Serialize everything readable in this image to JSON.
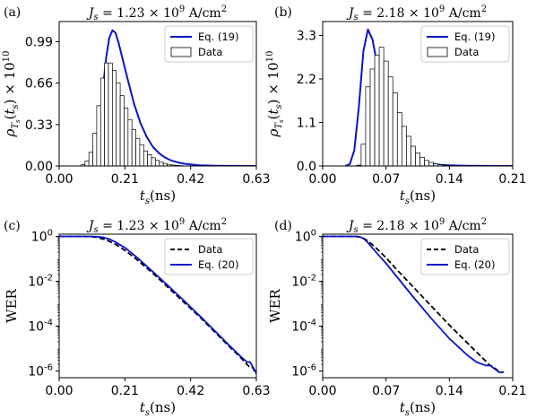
{
  "chart_data": [
    {
      "panel": "(a)",
      "type": "histogram+line",
      "title": "J_s = 1.23 × 10^9 A/cm^2",
      "title_parts": {
        "lhs": "J",
        "sub": "s",
        "mid": " = 1.23 × 10",
        "exp": "9",
        "unit": " A/cm",
        "unit_exp": "2"
      },
      "xlabel": "t_s(ns)",
      "ylabel": "ρ_{T_s}(t_s) × 10^{10}",
      "xlim": [
        0,
        0.63
      ],
      "ylim": [
        0,
        1.15
      ],
      "xticks": [
        0,
        0.21,
        0.42,
        0.63
      ],
      "xtick_labels": [
        "0.00",
        "0.21",
        "0.42",
        "0.63"
      ],
      "yticks": [
        0,
        0.33,
        0.66,
        0.99
      ],
      "ytick_labels": [
        "0.00",
        "0.33",
        "0.66",
        "0.99"
      ],
      "legend_position": "upper-right",
      "colors": {
        "model": "#0a14c8",
        "bars": "#ffffff",
        "bar_edge": "#000000"
      },
      "series": [
        {
          "name": "Eq. (19)",
          "kind": "line",
          "x": [
            0.07,
            0.08,
            0.09,
            0.1,
            0.11,
            0.12,
            0.13,
            0.14,
            0.15,
            0.16,
            0.17,
            0.18,
            0.19,
            0.2,
            0.22,
            0.24,
            0.26,
            0.28,
            0.3,
            0.32,
            0.34,
            0.36,
            0.38,
            0.4,
            0.42,
            0.45,
            0.5,
            0.55,
            0.63
          ],
          "y": [
            0.0,
            0.0,
            0.01,
            0.03,
            0.08,
            0.18,
            0.38,
            0.62,
            0.86,
            1.02,
            1.08,
            1.06,
            0.98,
            0.88,
            0.68,
            0.49,
            0.34,
            0.23,
            0.15,
            0.1,
            0.065,
            0.042,
            0.028,
            0.018,
            0.012,
            0.006,
            0.002,
            0.001,
            0.0
          ]
        },
        {
          "name": "Data",
          "kind": "bars",
          "bin_start": 0.07,
          "bin_width": 0.0125,
          "values": [
            0.01,
            0.04,
            0.11,
            0.26,
            0.48,
            0.7,
            0.82,
            0.82,
            0.76,
            0.66,
            0.56,
            0.46,
            0.37,
            0.29,
            0.22,
            0.17,
            0.12,
            0.09,
            0.065,
            0.045,
            0.03,
            0.02,
            0.013,
            0.008,
            0.005,
            0.003
          ]
        }
      ]
    },
    {
      "panel": "(b)",
      "type": "histogram+line",
      "title": "J_s = 2.18 × 10^9 A/cm^2",
      "title_parts": {
        "lhs": "J",
        "sub": "s",
        "mid": " = 2.18 × 10",
        "exp": "9",
        "unit": " A/cm",
        "unit_exp": "2"
      },
      "xlabel": "t_s(ns)",
      "ylabel": "ρ_{T_s}(t_s) × 10^{10}",
      "xlim": [
        0,
        0.21
      ],
      "ylim": [
        0,
        3.65
      ],
      "xticks": [
        0,
        0.07,
        0.14,
        0.21
      ],
      "xtick_labels": [
        "0.00",
        "0.07",
        "0.14",
        "0.21"
      ],
      "yticks": [
        0,
        1.1,
        2.2,
        3.3
      ],
      "ytick_labels": [
        "0.0",
        "1.1",
        "2.2",
        "3.3"
      ],
      "legend_position": "upper-right",
      "colors": {
        "model": "#0a14c8",
        "bars": "#ffffff",
        "bar_edge": "#000000"
      },
      "series": [
        {
          "name": "Eq. (19)",
          "kind": "line",
          "x": [
            0.025,
            0.03,
            0.035,
            0.04,
            0.045,
            0.05,
            0.055,
            0.06,
            0.065,
            0.07,
            0.075,
            0.08,
            0.09,
            0.1,
            0.11,
            0.12,
            0.13,
            0.14,
            0.16,
            0.18,
            0.21
          ],
          "y": [
            0.0,
            0.05,
            0.4,
            1.5,
            2.9,
            3.45,
            3.2,
            2.6,
            2.0,
            1.5,
            1.1,
            0.8,
            0.42,
            0.22,
            0.11,
            0.06,
            0.03,
            0.015,
            0.005,
            0.002,
            0.0
          ]
        },
        {
          "name": "Data",
          "kind": "bars",
          "bin_start": 0.0375,
          "bin_width": 0.005,
          "values": [
            0.02,
            0.55,
            2.0,
            2.45,
            2.8,
            3.0,
            2.65,
            2.25,
            1.85,
            1.35,
            1.0,
            0.75,
            0.5,
            0.33,
            0.22,
            0.14,
            0.09,
            0.05,
            0.03,
            0.015,
            0.01,
            0.005
          ]
        }
      ]
    },
    {
      "panel": "(c)",
      "type": "line",
      "title": "J_s = 1.23 × 10^9 A/cm^2",
      "title_parts": {
        "lhs": "J",
        "sub": "s",
        "mid": " = 1.23 × 10",
        "exp": "9",
        "unit": " A/cm",
        "unit_exp": "2"
      },
      "xlabel": "t_s(ns)",
      "ylabel": "WER",
      "yscale": "log",
      "xlim": [
        0,
        0.63
      ],
      "ylim_exp": [
        -6.3,
        0.1
      ],
      "xticks": [
        0,
        0.21,
        0.42,
        0.63
      ],
      "xtick_labels": [
        "0.00",
        "0.21",
        "0.42",
        "0.63"
      ],
      "yticks_exp": [
        0,
        -2,
        -4,
        -6
      ],
      "ytick_labels": [
        "10^0",
        "10^-2",
        "10^-4",
        "10^-6"
      ],
      "legend_position": "upper-right",
      "colors": {
        "data": "#000000",
        "model": "#0a14c8"
      },
      "series": [
        {
          "name": "Data",
          "style": "dashed",
          "x": [
            0,
            0.08,
            0.1,
            0.12,
            0.15,
            0.18,
            0.21,
            0.25,
            0.3,
            0.35,
            0.4,
            0.45,
            0.5,
            0.55,
            0.58,
            0.6,
            0.61,
            0.62,
            0.625,
            0.63
          ],
          "log10_y": [
            0,
            0,
            -0.01,
            -0.04,
            -0.15,
            -0.35,
            -0.62,
            -1.05,
            -1.65,
            -2.3,
            -2.95,
            -3.6,
            -4.3,
            -5.0,
            -5.4,
            -5.7,
            -5.85,
            -5.85,
            -6.1,
            -6.1
          ]
        },
        {
          "name": "Eq. (20)",
          "style": "solid",
          "x": [
            0,
            0.1,
            0.12,
            0.14,
            0.16,
            0.18,
            0.21,
            0.25,
            0.3,
            0.35,
            0.4,
            0.45,
            0.5,
            0.55,
            0.58,
            0.6,
            0.61,
            0.62,
            0.63
          ],
          "log10_y": [
            0,
            0,
            -0.01,
            -0.04,
            -0.12,
            -0.25,
            -0.5,
            -0.95,
            -1.58,
            -2.22,
            -2.88,
            -3.55,
            -4.25,
            -4.95,
            -5.35,
            -5.6,
            -5.6,
            -5.85,
            -6.1
          ]
        }
      ]
    },
    {
      "panel": "(d)",
      "type": "line",
      "title": "J_s = 2.18 × 10^9 A/cm^2",
      "title_parts": {
        "lhs": "J",
        "sub": "s",
        "mid": " = 2.18 × 10",
        "exp": "9",
        "unit": " A/cm",
        "unit_exp": "2"
      },
      "xlabel": "t_s(ns)",
      "ylabel": "WER",
      "yscale": "log",
      "xlim": [
        0,
        0.21
      ],
      "ylim_exp": [
        -6.3,
        0.1
      ],
      "xticks": [
        0,
        0.07,
        0.14,
        0.21
      ],
      "xtick_labels": [
        "0.00",
        "0.07",
        "0.14",
        "0.21"
      ],
      "yticks_exp": [
        0,
        -2,
        -4,
        -6
      ],
      "ytick_labels": [
        "10^0",
        "10^-2",
        "10^-4",
        "10^-6"
      ],
      "legend_position": "upper-right",
      "colors": {
        "data": "#000000",
        "model": "#0a14c8"
      },
      "series": [
        {
          "name": "Data",
          "style": "dashed",
          "x": [
            0,
            0.035,
            0.04,
            0.045,
            0.05,
            0.06,
            0.07,
            0.08,
            0.1,
            0.12,
            0.14,
            0.16,
            0.18,
            0.185,
            0.19,
            0.195,
            0.2
          ],
          "log10_y": [
            0,
            0,
            -0.02,
            -0.08,
            -0.2,
            -0.55,
            -0.95,
            -1.4,
            -2.25,
            -3.1,
            -3.95,
            -4.75,
            -5.55,
            -5.75,
            -5.85,
            -6.05,
            -6.05
          ]
        },
        {
          "name": "Eq. (20)",
          "style": "solid",
          "x": [
            0,
            0.038,
            0.042,
            0.046,
            0.05,
            0.06,
            0.07,
            0.08,
            0.1,
            0.12,
            0.14,
            0.16,
            0.17,
            0.18,
            0.185,
            0.19,
            0.195,
            0.2
          ],
          "log10_y": [
            0,
            0,
            -0.03,
            -0.12,
            -0.28,
            -0.75,
            -1.2,
            -1.7,
            -2.7,
            -3.65,
            -4.55,
            -5.3,
            -5.6,
            -5.75,
            -5.75,
            -5.9,
            -6.05,
            -6.05
          ]
        }
      ]
    }
  ]
}
